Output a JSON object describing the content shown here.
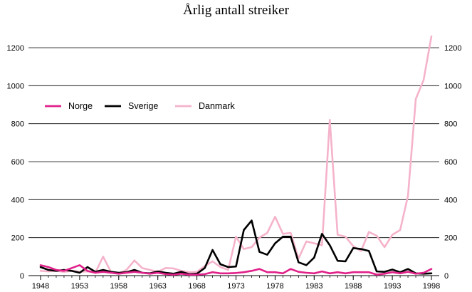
{
  "chart_data": {
    "type": "line",
    "title": "Årlig antall streiker",
    "xlabel": "",
    "ylabel": "",
    "ylim": [
      0,
      1300
    ],
    "y_ticks": [
      0,
      200,
      400,
      600,
      800,
      1000,
      1200
    ],
    "x_ticks": [
      1948,
      1953,
      1958,
      1963,
      1968,
      1973,
      1978,
      1983,
      1988,
      1993,
      1998
    ],
    "grid": "horizontal",
    "legend_position": "upper-left",
    "x": [
      1948,
      1949,
      1950,
      1951,
      1952,
      1953,
      1954,
      1955,
      1956,
      1957,
      1958,
      1959,
      1960,
      1961,
      1962,
      1963,
      1964,
      1965,
      1966,
      1967,
      1968,
      1969,
      1970,
      1971,
      1972,
      1973,
      1974,
      1975,
      1976,
      1977,
      1978,
      1979,
      1980,
      1981,
      1982,
      1983,
      1984,
      1985,
      1986,
      1987,
      1988,
      1989,
      1990,
      1991,
      1992,
      1993,
      1994,
      1995,
      1996,
      1997,
      1998
    ],
    "series": [
      {
        "name": "Norge",
        "color": "#e0218a",
        "values": [
          55,
          45,
          30,
          25,
          40,
          55,
          25,
          15,
          20,
          15,
          10,
          15,
          20,
          15,
          10,
          15,
          8,
          5,
          10,
          5,
          5,
          8,
          18,
          12,
          12,
          14,
          18,
          25,
          35,
          18,
          18,
          12,
          35,
          20,
          15,
          12,
          22,
          12,
          18,
          12,
          18,
          18,
          18,
          5,
          10,
          18,
          12,
          20,
          10,
          15,
          35
        ]
      },
      {
        "name": "Sverige",
        "color": "#000000",
        "values": [
          45,
          30,
          25,
          30,
          25,
          15,
          45,
          20,
          30,
          20,
          15,
          18,
          30,
          15,
          12,
          22,
          15,
          10,
          20,
          8,
          10,
          40,
          135,
          60,
          45,
          48,
          240,
          290,
          125,
          110,
          170,
          205,
          205,
          70,
          55,
          95,
          220,
          160,
          78,
          75,
          145,
          140,
          130,
          22,
          20,
          32,
          18,
          35,
          12,
          10,
          12
        ]
      },
      {
        "name": "Danmark",
        "color": "#f5b3cb",
        "values": [
          25,
          22,
          25,
          20,
          25,
          20,
          22,
          15,
          100,
          20,
          12,
          30,
          80,
          40,
          30,
          20,
          40,
          38,
          25,
          18,
          20,
          50,
          75,
          45,
          30,
          205,
          140,
          150,
          200,
          225,
          310,
          220,
          225,
          90,
          180,
          170,
          160,
          820,
          215,
          205,
          155,
          130,
          230,
          210,
          150,
          215,
          240,
          420,
          930,
          1030,
          1260
        ]
      }
    ]
  }
}
